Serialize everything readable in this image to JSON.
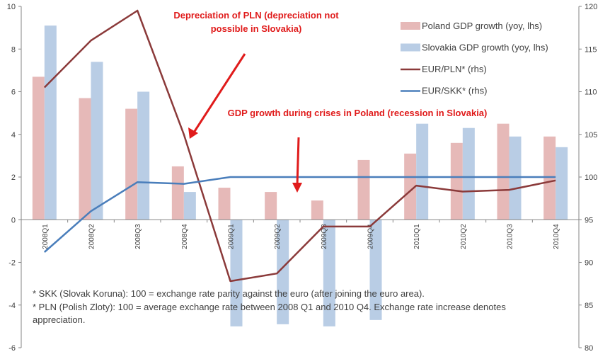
{
  "chart_data": {
    "type": "bar",
    "categories": [
      "2008Q1",
      "2008Q2",
      "2008Q3",
      "2008Q4",
      "2009Q1",
      "2009Q2",
      "2009Q3",
      "2009Q4",
      "2010Q1",
      "2010Q2",
      "2010Q3",
      "2010Q4"
    ],
    "y_left": {
      "min": -6,
      "max": 10,
      "step": 2,
      "ticks": [
        "-6",
        "-4",
        "-2",
        "0",
        "2",
        "4",
        "6",
        "8",
        "10"
      ]
    },
    "y_right": {
      "min": 80,
      "max": 120,
      "step": 5,
      "ticks": [
        "80",
        "85",
        "90",
        "95",
        "100",
        "105",
        "110",
        "115",
        "120"
      ]
    },
    "bar_series": [
      {
        "name": "Poland GDP growth (yoy, lhs)",
        "color": "#e6b9b8",
        "values": [
          6.7,
          5.7,
          5.2,
          2.5,
          1.5,
          1.3,
          0.9,
          2.8,
          3.1,
          3.6,
          4.5,
          3.9
        ]
      },
      {
        "name": "Slovakia GDP growth (yoy, lhs)",
        "color": "#b9cde5",
        "values": [
          9.1,
          7.4,
          6.0,
          1.3,
          -5.0,
          -4.9,
          -5.0,
          -4.7,
          4.5,
          4.3,
          3.9,
          3.4
        ]
      }
    ],
    "line_series": [
      {
        "name": "EUR/PLN* (rhs)",
        "color": "#8b3a3a",
        "values": [
          110.5,
          116.0,
          119.5,
          105.0,
          87.8,
          88.7,
          94.2,
          94.2,
          99.0,
          98.3,
          98.5,
          99.6
        ]
      },
      {
        "name": "EUR/SKK* (rhs)",
        "color": "#4a7ebb",
        "values": [
          91.2,
          96.0,
          99.4,
          99.2,
          100,
          100,
          100,
          100,
          100,
          100,
          100,
          100
        ]
      }
    ],
    "grid": false,
    "legend_position": "top-right",
    "annotations": [
      {
        "text_lines": [
          "Depreciation of PLN (depreciation not",
          "possible in Slovakia)"
        ]
      },
      {
        "text_lines": [
          "GDP growth during crises in Poland (recession in Slovakia)"
        ]
      }
    ],
    "footnotes": [
      "* SKK (Slovak Koruna): 100 = exchange rate parity against the euro (after joining the euro area).",
      "* PLN (Polish Zloty): 100 = average exchange rate between 2008 Q1 and 2010 Q4. Exchange rate increase denotes",
      "appreciation."
    ]
  }
}
